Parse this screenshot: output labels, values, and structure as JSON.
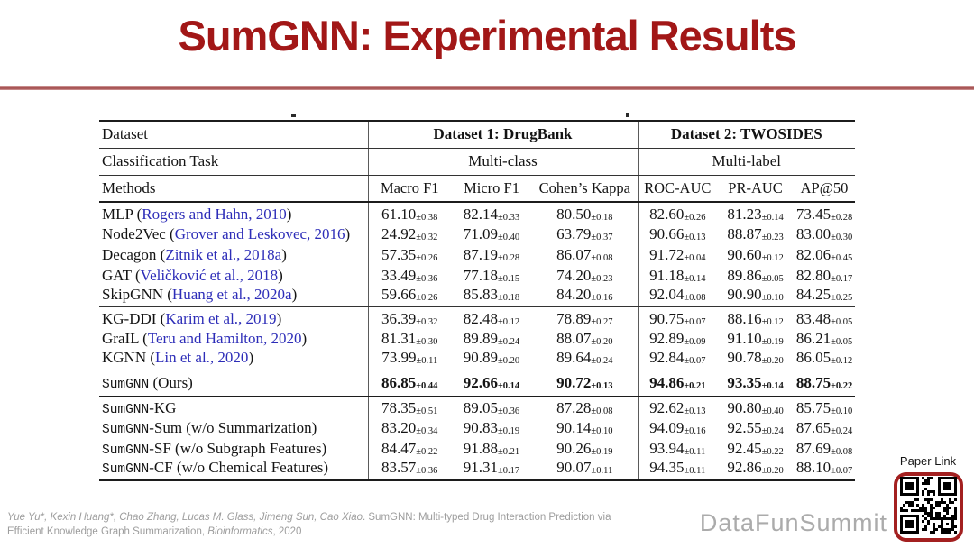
{
  "title": "SumGNN: Experimental Results",
  "colors": {
    "title_red": "#A21717",
    "divider_red": "#A85656",
    "citation_link_blue": "#2d2db8",
    "qr_border_red": "#A32020",
    "brand_gray": "#ababab"
  },
  "table": {
    "header": {
      "dataset_label": "Dataset",
      "dataset1": "Dataset 1: DrugBank",
      "dataset2": "Dataset 2: TWOSIDES",
      "task_label": "Classification Task",
      "task1": "Multi-class",
      "task2": "Multi-label",
      "methods_label": "Methods",
      "metric_cols": [
        "Macro F1",
        "Micro F1",
        "Cohen’s Kappa",
        "ROC-AUC",
        "PR-AUC",
        "AP@50"
      ]
    },
    "groups": [
      {
        "rows": [
          {
            "name": "MLP",
            "cite": "Rogers and Hahn, 2010",
            "values": [
              "61.10±0.38",
              "82.14±0.33",
              "80.50±0.18",
              "82.60±0.26",
              "81.23±0.14",
              "73.45±0.28"
            ]
          },
          {
            "name": "Node2Vec",
            "cite": "Grover and Leskovec, 2016",
            "values": [
              "24.92±0.32",
              "71.09±0.40",
              "63.79±0.37",
              "90.66±0.13",
              "88.87±0.23",
              "83.00±0.30"
            ]
          },
          {
            "name": "Decagon",
            "cite": "Zitnik et al., 2018a",
            "values": [
              "57.35±0.26",
              "87.19±0.28",
              "86.07±0.08",
              "91.72±0.04",
              "90.60±0.12",
              "82.06±0.45"
            ]
          },
          {
            "name": "GAT",
            "cite": "Veličković et al., 2018",
            "values": [
              "33.49±0.36",
              "77.18±0.15",
              "74.20±0.23",
              "91.18±0.14",
              "89.86±0.05",
              "82.80±0.17"
            ]
          },
          {
            "name": "SkipGNN",
            "cite": "Huang et al., 2020a",
            "values": [
              "59.66±0.26",
              "85.83±0.18",
              "84.20±0.16",
              "92.04±0.08",
              "90.90±0.10",
              "84.25±0.25"
            ]
          }
        ]
      },
      {
        "rows": [
          {
            "name": "KG-DDI",
            "cite": "Karim et al., 2019",
            "values": [
              "36.39±0.32",
              "82.48±0.12",
              "78.89±0.27",
              "90.75±0.07",
              "88.16±0.12",
              "83.48±0.05"
            ]
          },
          {
            "name": "GraIL",
            "cite": "Teru and Hamilton, 2020",
            "values": [
              "81.31±0.30",
              "89.89±0.24",
              "88.07±0.20",
              "92.89±0.09",
              "91.10±0.19",
              "86.21±0.05"
            ]
          },
          {
            "name": "KGNN",
            "cite": "Lin et al., 2020",
            "values": [
              "73.99±0.11",
              "90.89±0.20",
              "89.64±0.24",
              "92.84±0.07",
              "90.78±0.20",
              "86.05±0.12"
            ]
          }
        ]
      },
      {
        "rows": [
          {
            "mono": "SumGNN",
            "plain": " (Ours)",
            "bold": true,
            "values": [
              "86.85±0.44",
              "92.66±0.14",
              "90.72±0.13",
              "94.86±0.21",
              "93.35±0.14",
              "88.75±0.22"
            ]
          }
        ]
      },
      {
        "rows": [
          {
            "mono": "SumGNN",
            "plain": "-KG",
            "values": [
              "78.35±0.51",
              "89.05±0.36",
              "87.28±0.08",
              "92.62±0.13",
              "90.80±0.40",
              "85.75±0.10"
            ]
          },
          {
            "mono": "SumGNN",
            "plain": "-Sum (w/o Summarization)",
            "values": [
              "83.20±0.34",
              "90.83±0.19",
              "90.14±0.10",
              "94.09±0.16",
              "92.55±0.24",
              "87.65±0.24"
            ]
          },
          {
            "mono": "SumGNN",
            "plain": "-SF (w/o Subgraph Features)",
            "values": [
              "84.47±0.22",
              "91.88±0.21",
              "90.26±0.19",
              "93.94±0.11",
              "92.45±0.22",
              "87.69±0.08"
            ]
          },
          {
            "mono": "SumGNN",
            "plain": "-CF (w/o Chemical Features)",
            "values": [
              "83.57±0.36",
              "91.31±0.17",
              "90.07±0.11",
              "94.35±0.11",
              "92.86±0.20",
              "88.10±0.07"
            ]
          }
        ]
      }
    ]
  },
  "citation": {
    "authors": "Yue Yu*, Kexin Huang*, Chao Zhang, Lucas M. Glass, Jimeng Sun, Cao Xiao",
    "separator": ". ",
    "title_line1": "SumGNN: Multi-typed Drug Interaction Prediction via",
    "line2_prefix": "Efficient Knowledge Graph Summarization, ",
    "journal": "Bioinformatics",
    "line2_suffix": ", 2020"
  },
  "footer": {
    "brand": "DataFunSummit",
    "paper_link_label": "Paper Link"
  }
}
